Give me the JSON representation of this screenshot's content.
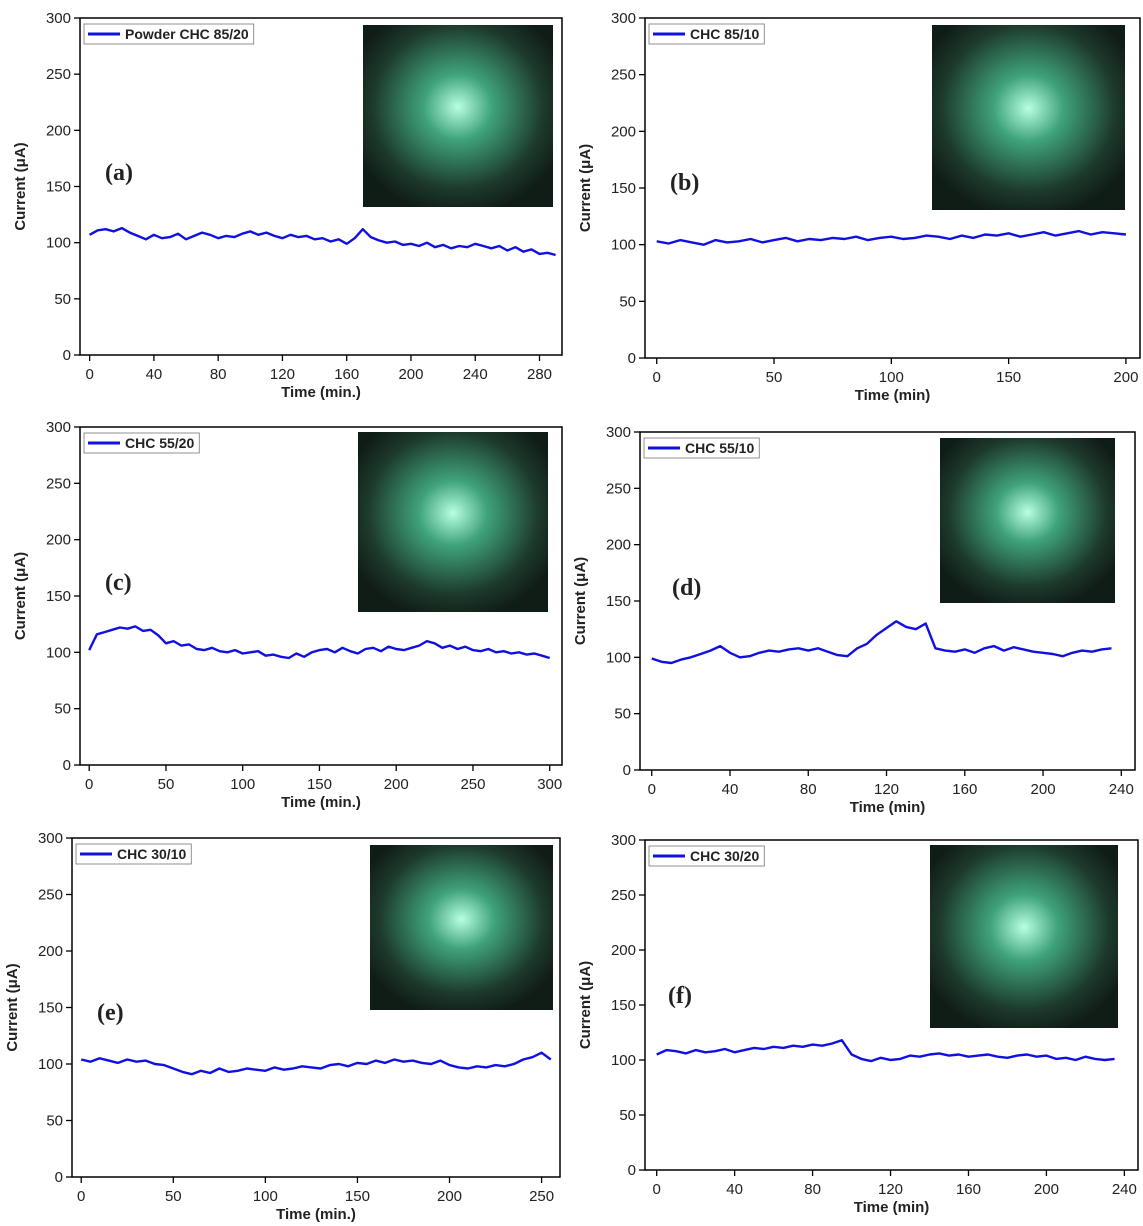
{
  "chart_data": [
    {
      "type": "line",
      "label": "(a)",
      "x_label": "Time (min.)",
      "y_label": "Current (μA)",
      "xlim": [
        -6,
        294
      ],
      "ylim": [
        0,
        300
      ],
      "xticks": [
        0,
        40,
        80,
        120,
        160,
        200,
        240,
        280
      ],
      "yticks": [
        0,
        50,
        100,
        150,
        200,
        250,
        300
      ],
      "x": [
        0,
        5,
        10,
        15,
        20,
        25,
        30,
        35,
        40,
        45,
        50,
        55,
        60,
        65,
        70,
        75,
        80,
        85,
        90,
        95,
        100,
        105,
        110,
        115,
        120,
        125,
        130,
        135,
        140,
        145,
        150,
        155,
        160,
        165,
        170,
        175,
        180,
        185,
        190,
        195,
        200,
        205,
        210,
        215,
        220,
        225,
        230,
        235,
        240,
        245,
        250,
        255,
        260,
        265,
        270,
        275,
        280,
        285,
        290
      ],
      "series": [
        {
          "name": "Powder CHC 85/20",
          "color": "#1010e0",
          "values": [
            107,
            111,
            112,
            110,
            113,
            109,
            106,
            103,
            107,
            104,
            105,
            108,
            103,
            106,
            109,
            107,
            104,
            106,
            105,
            108,
            110,
            107,
            109,
            106,
            104,
            107,
            105,
            106,
            103,
            104,
            101,
            103,
            99,
            104,
            112,
            105,
            102,
            100,
            101,
            98,
            99,
            97,
            100,
            96,
            98,
            95,
            97,
            96,
            99,
            97,
            95,
            97,
            93,
            96,
            92,
            94,
            90,
            91,
            89
          ]
        }
      ]
    },
    {
      "type": "line",
      "label": "(b)",
      "x_label": "Time (min)",
      "y_label": "Current (μA)",
      "xlim": [
        -5,
        206
      ],
      "ylim": [
        0,
        300
      ],
      "xticks": [
        0,
        50,
        100,
        150,
        200
      ],
      "yticks": [
        0,
        50,
        100,
        150,
        200,
        250,
        300
      ],
      "x": [
        0,
        5,
        10,
        15,
        20,
        25,
        30,
        35,
        40,
        45,
        50,
        55,
        60,
        65,
        70,
        75,
        80,
        85,
        90,
        95,
        100,
        105,
        110,
        115,
        120,
        125,
        130,
        135,
        140,
        145,
        150,
        155,
        160,
        165,
        170,
        175,
        180,
        185,
        190,
        195,
        200
      ],
      "series": [
        {
          "name": "CHC 85/10",
          "color": "#1010e0",
          "values": [
            103,
            101,
            104,
            102,
            100,
            104,
            102,
            103,
            105,
            102,
            104,
            106,
            103,
            105,
            104,
            106,
            105,
            107,
            104,
            106,
            107,
            105,
            106,
            108,
            107,
            105,
            108,
            106,
            109,
            108,
            110,
            107,
            109,
            111,
            108,
            110,
            112,
            109,
            111,
            110,
            109
          ]
        }
      ]
    },
    {
      "type": "line",
      "label": "(c)",
      "x_label": "Time (min.)",
      "y_label": "Current (μA)",
      "xlim": [
        -6,
        308
      ],
      "ylim": [
        0,
        300
      ],
      "xticks": [
        0,
        50,
        100,
        150,
        200,
        250,
        300
      ],
      "yticks": [
        0,
        50,
        100,
        150,
        200,
        250,
        300
      ],
      "x": [
        0,
        5,
        10,
        15,
        20,
        25,
        30,
        35,
        40,
        45,
        50,
        55,
        60,
        65,
        70,
        75,
        80,
        85,
        90,
        95,
        100,
        105,
        110,
        115,
        120,
        125,
        130,
        135,
        140,
        145,
        150,
        155,
        160,
        165,
        170,
        175,
        180,
        185,
        190,
        195,
        200,
        205,
        210,
        215,
        220,
        225,
        230,
        235,
        240,
        245,
        250,
        255,
        260,
        265,
        270,
        275,
        280,
        285,
        290,
        295,
        300
      ],
      "series": [
        {
          "name": "CHC 55/20",
          "color": "#1010e0",
          "values": [
            102,
            116,
            118,
            120,
            122,
            121,
            123,
            119,
            120,
            115,
            108,
            110,
            106,
            107,
            103,
            102,
            104,
            101,
            100,
            102,
            99,
            100,
            101,
            97,
            98,
            96,
            95,
            99,
            96,
            100,
            102,
            103,
            100,
            104,
            101,
            99,
            103,
            104,
            101,
            105,
            103,
            102,
            104,
            106,
            110,
            108,
            104,
            106,
            103,
            105,
            102,
            101,
            103,
            100,
            101,
            99,
            100,
            98,
            99,
            97,
            95
          ]
        }
      ]
    },
    {
      "type": "line",
      "label": "(d)",
      "x_label": "Time (min)",
      "y_label": "Current (μA)",
      "xlim": [
        -6,
        247
      ],
      "ylim": [
        0,
        300
      ],
      "xticks": [
        0,
        40,
        80,
        120,
        160,
        200,
        240
      ],
      "yticks": [
        0,
        50,
        100,
        150,
        200,
        250,
        300
      ],
      "x": [
        0,
        5,
        10,
        15,
        20,
        25,
        30,
        35,
        40,
        45,
        50,
        55,
        60,
        65,
        70,
        75,
        80,
        85,
        90,
        95,
        100,
        105,
        110,
        115,
        120,
        125,
        130,
        135,
        140,
        145,
        150,
        155,
        160,
        165,
        170,
        175,
        180,
        185,
        190,
        195,
        200,
        205,
        210,
        215,
        220,
        225,
        230,
        235
      ],
      "series": [
        {
          "name": "CHC 55/10",
          "color": "#1010e0",
          "values": [
            99,
            96,
            95,
            98,
            100,
            103,
            106,
            110,
            104,
            100,
            101,
            104,
            106,
            105,
            107,
            108,
            106,
            108,
            105,
            102,
            101,
            108,
            112,
            120,
            126,
            132,
            127,
            125,
            130,
            108,
            106,
            105,
            107,
            104,
            108,
            110,
            106,
            109,
            107,
            105,
            104,
            103,
            101,
            104,
            106,
            105,
            107,
            108
          ]
        }
      ]
    },
    {
      "type": "line",
      "label": "(e)",
      "x_label": "Time (min.)",
      "y_label": "Current (μA)",
      "xlim": [
        -5,
        260
      ],
      "ylim": [
        0,
        300
      ],
      "xticks": [
        0,
        50,
        100,
        150,
        200,
        250
      ],
      "yticks": [
        0,
        50,
        100,
        150,
        200,
        250,
        300
      ],
      "x": [
        0,
        5,
        10,
        15,
        20,
        25,
        30,
        35,
        40,
        45,
        50,
        55,
        60,
        65,
        70,
        75,
        80,
        85,
        90,
        95,
        100,
        105,
        110,
        115,
        120,
        125,
        130,
        135,
        140,
        145,
        150,
        155,
        160,
        165,
        170,
        175,
        180,
        185,
        190,
        195,
        200,
        205,
        210,
        215,
        220,
        225,
        230,
        235,
        240,
        245,
        250,
        255
      ],
      "series": [
        {
          "name": "CHC 30/10",
          "color": "#1010e0",
          "values": [
            104,
            102,
            105,
            103,
            101,
            104,
            102,
            103,
            100,
            99,
            96,
            93,
            91,
            94,
            92,
            96,
            93,
            94,
            96,
            95,
            94,
            97,
            95,
            96,
            98,
            97,
            96,
            99,
            100,
            98,
            101,
            100,
            103,
            101,
            104,
            102,
            103,
            101,
            100,
            103,
            99,
            97,
            96,
            98,
            97,
            99,
            98,
            100,
            104,
            106,
            110,
            104
          ]
        }
      ]
    },
    {
      "type": "line",
      "label": "(f)",
      "x_label": "Time (min)",
      "y_label": "Current (μA)",
      "xlim": [
        -6,
        247
      ],
      "ylim": [
        0,
        300
      ],
      "xticks": [
        0,
        40,
        80,
        120,
        160,
        200,
        240
      ],
      "yticks": [
        0,
        50,
        100,
        150,
        200,
        250,
        300
      ],
      "x": [
        0,
        5,
        10,
        15,
        20,
        25,
        30,
        35,
        40,
        45,
        50,
        55,
        60,
        65,
        70,
        75,
        80,
        85,
        90,
        95,
        100,
        105,
        110,
        115,
        120,
        125,
        130,
        135,
        140,
        145,
        150,
        155,
        160,
        165,
        170,
        175,
        180,
        185,
        190,
        195,
        200,
        205,
        210,
        215,
        220,
        225,
        230,
        235
      ],
      "series": [
        {
          "name": "CHC 30/20",
          "color": "#1010e0",
          "values": [
            105,
            109,
            108,
            106,
            109,
            107,
            108,
            110,
            107,
            109,
            111,
            110,
            112,
            111,
            113,
            112,
            114,
            113,
            115,
            118,
            105,
            101,
            99,
            102,
            100,
            101,
            104,
            103,
            105,
            106,
            104,
            105,
            103,
            104,
            105,
            103,
            102,
            104,
            105,
            103,
            104,
            101,
            102,
            100,
            103,
            101,
            100,
            101
          ]
        }
      ]
    }
  ]
}
